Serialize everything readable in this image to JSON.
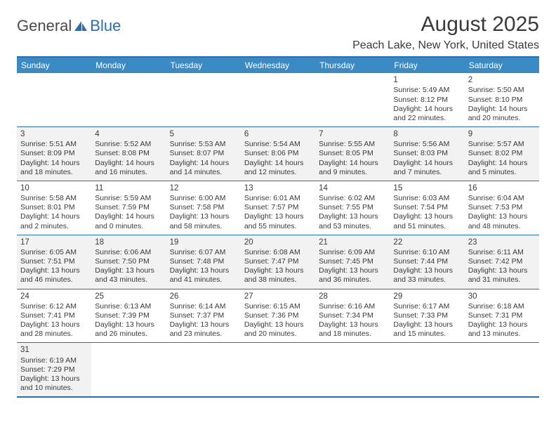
{
  "logo": {
    "text1": "General",
    "text2": "Blue"
  },
  "title": "August 2025",
  "location": "Peach Lake, New York, United States",
  "header_bg": "#3b8ac4",
  "border_color": "#2a6db0",
  "days": [
    "Sunday",
    "Monday",
    "Tuesday",
    "Wednesday",
    "Thursday",
    "Friday",
    "Saturday"
  ],
  "weeks": [
    [
      {
        "blank": true
      },
      {
        "blank": true
      },
      {
        "blank": true
      },
      {
        "blank": true
      },
      {
        "blank": true
      },
      {
        "n": "1",
        "sr": "Sunrise: 5:49 AM",
        "ss": "Sunset: 8:12 PM",
        "d1": "Daylight: 14 hours",
        "d2": "and 22 minutes."
      },
      {
        "n": "2",
        "sr": "Sunrise: 5:50 AM",
        "ss": "Sunset: 8:10 PM",
        "d1": "Daylight: 14 hours",
        "d2": "and 20 minutes."
      }
    ],
    [
      {
        "n": "3",
        "shaded": true,
        "sr": "Sunrise: 5:51 AM",
        "ss": "Sunset: 8:09 PM",
        "d1": "Daylight: 14 hours",
        "d2": "and 18 minutes."
      },
      {
        "n": "4",
        "shaded": true,
        "sr": "Sunrise: 5:52 AM",
        "ss": "Sunset: 8:08 PM",
        "d1": "Daylight: 14 hours",
        "d2": "and 16 minutes."
      },
      {
        "n": "5",
        "shaded": true,
        "sr": "Sunrise: 5:53 AM",
        "ss": "Sunset: 8:07 PM",
        "d1": "Daylight: 14 hours",
        "d2": "and 14 minutes."
      },
      {
        "n": "6",
        "shaded": true,
        "sr": "Sunrise: 5:54 AM",
        "ss": "Sunset: 8:06 PM",
        "d1": "Daylight: 14 hours",
        "d2": "and 12 minutes."
      },
      {
        "n": "7",
        "shaded": true,
        "sr": "Sunrise: 5:55 AM",
        "ss": "Sunset: 8:05 PM",
        "d1": "Daylight: 14 hours",
        "d2": "and 9 minutes."
      },
      {
        "n": "8",
        "shaded": true,
        "sr": "Sunrise: 5:56 AM",
        "ss": "Sunset: 8:03 PM",
        "d1": "Daylight: 14 hours",
        "d2": "and 7 minutes."
      },
      {
        "n": "9",
        "shaded": true,
        "sr": "Sunrise: 5:57 AM",
        "ss": "Sunset: 8:02 PM",
        "d1": "Daylight: 14 hours",
        "d2": "and 5 minutes."
      }
    ],
    [
      {
        "n": "10",
        "sr": "Sunrise: 5:58 AM",
        "ss": "Sunset: 8:01 PM",
        "d1": "Daylight: 14 hours",
        "d2": "and 2 minutes."
      },
      {
        "n": "11",
        "sr": "Sunrise: 5:59 AM",
        "ss": "Sunset: 7:59 PM",
        "d1": "Daylight: 14 hours",
        "d2": "and 0 minutes."
      },
      {
        "n": "12",
        "sr": "Sunrise: 6:00 AM",
        "ss": "Sunset: 7:58 PM",
        "d1": "Daylight: 13 hours",
        "d2": "and 58 minutes."
      },
      {
        "n": "13",
        "sr": "Sunrise: 6:01 AM",
        "ss": "Sunset: 7:57 PM",
        "d1": "Daylight: 13 hours",
        "d2": "and 55 minutes."
      },
      {
        "n": "14",
        "sr": "Sunrise: 6:02 AM",
        "ss": "Sunset: 7:55 PM",
        "d1": "Daylight: 13 hours",
        "d2": "and 53 minutes."
      },
      {
        "n": "15",
        "sr": "Sunrise: 6:03 AM",
        "ss": "Sunset: 7:54 PM",
        "d1": "Daylight: 13 hours",
        "d2": "and 51 minutes."
      },
      {
        "n": "16",
        "sr": "Sunrise: 6:04 AM",
        "ss": "Sunset: 7:53 PM",
        "d1": "Daylight: 13 hours",
        "d2": "and 48 minutes."
      }
    ],
    [
      {
        "n": "17",
        "shaded": true,
        "sr": "Sunrise: 6:05 AM",
        "ss": "Sunset: 7:51 PM",
        "d1": "Daylight: 13 hours",
        "d2": "and 46 minutes."
      },
      {
        "n": "18",
        "shaded": true,
        "sr": "Sunrise: 6:06 AM",
        "ss": "Sunset: 7:50 PM",
        "d1": "Daylight: 13 hours",
        "d2": "and 43 minutes."
      },
      {
        "n": "19",
        "shaded": true,
        "sr": "Sunrise: 6:07 AM",
        "ss": "Sunset: 7:48 PM",
        "d1": "Daylight: 13 hours",
        "d2": "and 41 minutes."
      },
      {
        "n": "20",
        "shaded": true,
        "sr": "Sunrise: 6:08 AM",
        "ss": "Sunset: 7:47 PM",
        "d1": "Daylight: 13 hours",
        "d2": "and 38 minutes."
      },
      {
        "n": "21",
        "shaded": true,
        "sr": "Sunrise: 6:09 AM",
        "ss": "Sunset: 7:45 PM",
        "d1": "Daylight: 13 hours",
        "d2": "and 36 minutes."
      },
      {
        "n": "22",
        "shaded": true,
        "sr": "Sunrise: 6:10 AM",
        "ss": "Sunset: 7:44 PM",
        "d1": "Daylight: 13 hours",
        "d2": "and 33 minutes."
      },
      {
        "n": "23",
        "shaded": true,
        "sr": "Sunrise: 6:11 AM",
        "ss": "Sunset: 7:42 PM",
        "d1": "Daylight: 13 hours",
        "d2": "and 31 minutes."
      }
    ],
    [
      {
        "n": "24",
        "sr": "Sunrise: 6:12 AM",
        "ss": "Sunset: 7:41 PM",
        "d1": "Daylight: 13 hours",
        "d2": "and 28 minutes."
      },
      {
        "n": "25",
        "sr": "Sunrise: 6:13 AM",
        "ss": "Sunset: 7:39 PM",
        "d1": "Daylight: 13 hours",
        "d2": "and 26 minutes."
      },
      {
        "n": "26",
        "sr": "Sunrise: 6:14 AM",
        "ss": "Sunset: 7:37 PM",
        "d1": "Daylight: 13 hours",
        "d2": "and 23 minutes."
      },
      {
        "n": "27",
        "sr": "Sunrise: 6:15 AM",
        "ss": "Sunset: 7:36 PM",
        "d1": "Daylight: 13 hours",
        "d2": "and 20 minutes."
      },
      {
        "n": "28",
        "sr": "Sunrise: 6:16 AM",
        "ss": "Sunset: 7:34 PM",
        "d1": "Daylight: 13 hours",
        "d2": "and 18 minutes."
      },
      {
        "n": "29",
        "sr": "Sunrise: 6:17 AM",
        "ss": "Sunset: 7:33 PM",
        "d1": "Daylight: 13 hours",
        "d2": "and 15 minutes."
      },
      {
        "n": "30",
        "sr": "Sunrise: 6:18 AM",
        "ss": "Sunset: 7:31 PM",
        "d1": "Daylight: 13 hours",
        "d2": "and 13 minutes."
      }
    ],
    [
      {
        "n": "31",
        "shaded": true,
        "sr": "Sunrise: 6:19 AM",
        "ss": "Sunset: 7:29 PM",
        "d1": "Daylight: 13 hours",
        "d2": "and 10 minutes."
      },
      {
        "blank": true
      },
      {
        "blank": true
      },
      {
        "blank": true
      },
      {
        "blank": true
      },
      {
        "blank": true
      },
      {
        "blank": true
      }
    ]
  ]
}
